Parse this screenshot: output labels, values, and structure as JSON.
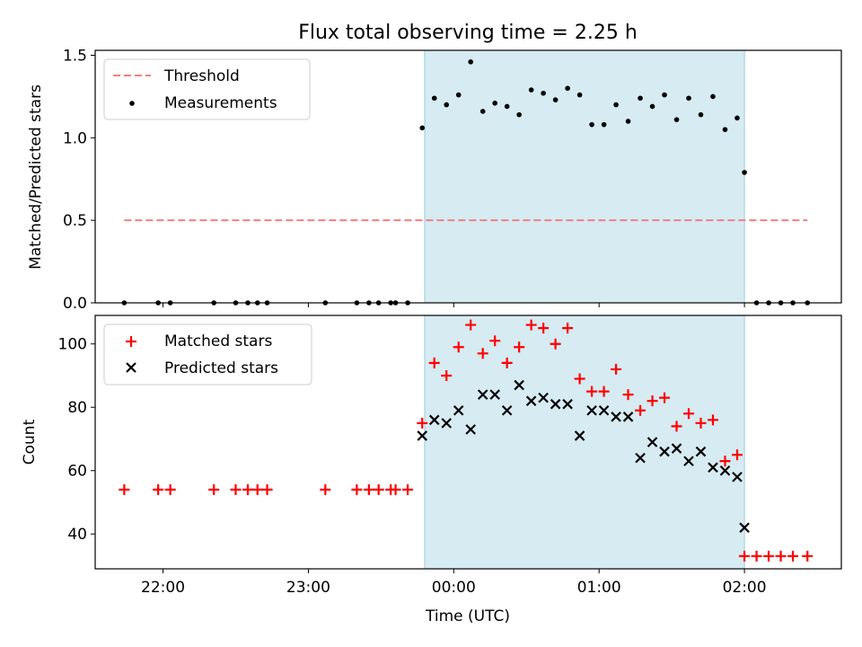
{
  "chart_data": {
    "title": "Flux total observing time = 2.25 h",
    "xlabel": "Time (UTC)",
    "x_ticks": [
      {
        "t": "22:00",
        "label": "22:00"
      },
      {
        "t": "23:00",
        "label": "23:00"
      },
      {
        "t": "00:00",
        "label": "00:00"
      },
      {
        "t": "01:00",
        "label": "01:00"
      },
      {
        "t": "02:00",
        "label": "02:00"
      }
    ],
    "xlim": [
      "21:32",
      "02:40"
    ],
    "shaded_interval": {
      "start": "23:48",
      "end": "02:00",
      "color": "#add8e6"
    },
    "panels": [
      {
        "type": "scatter",
        "ylabel": "Matched/Predicted stars",
        "ylim": [
          0,
          1.53
        ],
        "yticks": [
          0.0,
          0.5,
          1.0,
          1.5
        ],
        "ytick_labels": [
          "0.0",
          "0.5",
          "1.0",
          "1.5"
        ],
        "legend": {
          "location": "upper left",
          "entries": [
            "Threshold",
            "Measurements"
          ]
        },
        "threshold": {
          "name": "Threshold",
          "y": 0.5,
          "x_start": "21:44",
          "x_end": "02:26",
          "color": "#f08080",
          "style": "dashed"
        },
        "series": [
          {
            "name": "Measurements",
            "marker": "dot",
            "color": "#000000",
            "points": [
              [
                "21:44",
                0.0
              ],
              [
                "21:58",
                0.0
              ],
              [
                "22:03",
                0.0
              ],
              [
                "22:21",
                0.0
              ],
              [
                "22:30",
                0.0
              ],
              [
                "22:35",
                0.0
              ],
              [
                "22:39",
                0.0
              ],
              [
                "22:43",
                0.0
              ],
              [
                "23:07",
                0.0
              ],
              [
                "23:20",
                0.0
              ],
              [
                "23:25",
                0.0
              ],
              [
                "23:29",
                0.0
              ],
              [
                "23:34",
                0.0
              ],
              [
                "23:36",
                0.0
              ],
              [
                "23:41",
                0.0
              ],
              [
                "23:47",
                1.06
              ],
              [
                "23:52",
                1.24
              ],
              [
                "23:57",
                1.2
              ],
              [
                "00:02",
                1.26
              ],
              [
                "00:07",
                1.46
              ],
              [
                "00:12",
                1.16
              ],
              [
                "00:17",
                1.21
              ],
              [
                "00:22",
                1.19
              ],
              [
                "00:27",
                1.14
              ],
              [
                "00:32",
                1.29
              ],
              [
                "00:37",
                1.27
              ],
              [
                "00:42",
                1.23
              ],
              [
                "00:47",
                1.3
              ],
              [
                "00:52",
                1.26
              ],
              [
                "00:57",
                1.08
              ],
              [
                "01:02",
                1.08
              ],
              [
                "01:07",
                1.2
              ],
              [
                "01:12",
                1.1
              ],
              [
                "01:17",
                1.24
              ],
              [
                "01:22",
                1.19
              ],
              [
                "01:27",
                1.26
              ],
              [
                "01:32",
                1.11
              ],
              [
                "01:37",
                1.24
              ],
              [
                "01:42",
                1.14
              ],
              [
                "01:47",
                1.25
              ],
              [
                "01:52",
                1.05
              ],
              [
                "01:57",
                1.12
              ],
              [
                "02:00",
                0.79
              ],
              [
                "02:05",
                0.0
              ],
              [
                "02:10",
                0.0
              ],
              [
                "02:15",
                0.0
              ],
              [
                "02:20",
                0.0
              ],
              [
                "02:26",
                0.0
              ]
            ]
          }
        ]
      },
      {
        "type": "scatter",
        "ylabel": "Count",
        "ylim": [
          29,
          109
        ],
        "yticks": [
          40,
          60,
          80,
          100
        ],
        "ytick_labels": [
          "40",
          "60",
          "80",
          "100"
        ],
        "legend": {
          "location": "upper left",
          "entries": [
            "Matched stars",
            "Predicted stars"
          ]
        },
        "series": [
          {
            "name": "Matched stars",
            "marker": "plus",
            "color": "#ff0000",
            "points": [
              [
                "21:44",
                54
              ],
              [
                "21:58",
                54
              ],
              [
                "22:03",
                54
              ],
              [
                "22:21",
                54
              ],
              [
                "22:30",
                54
              ],
              [
                "22:35",
                54
              ],
              [
                "22:39",
                54
              ],
              [
                "22:43",
                54
              ],
              [
                "23:07",
                54
              ],
              [
                "23:20",
                54
              ],
              [
                "23:25",
                54
              ],
              [
                "23:29",
                54
              ],
              [
                "23:34",
                54
              ],
              [
                "23:36",
                54
              ],
              [
                "23:41",
                54
              ],
              [
                "23:47",
                75
              ],
              [
                "23:52",
                94
              ],
              [
                "23:57",
                90
              ],
              [
                "00:02",
                99
              ],
              [
                "00:07",
                106
              ],
              [
                "00:12",
                97
              ],
              [
                "00:17",
                101
              ],
              [
                "00:22",
                94
              ],
              [
                "00:27",
                99
              ],
              [
                "00:32",
                106
              ],
              [
                "00:37",
                105
              ],
              [
                "00:42",
                100
              ],
              [
                "00:47",
                105
              ],
              [
                "00:52",
                89
              ],
              [
                "00:57",
                85
              ],
              [
                "01:02",
                85
              ],
              [
                "01:07",
                92
              ],
              [
                "01:12",
                84
              ],
              [
                "01:17",
                79
              ],
              [
                "01:22",
                82
              ],
              [
                "01:27",
                83
              ],
              [
                "01:32",
                74
              ],
              [
                "01:37",
                78
              ],
              [
                "01:42",
                75
              ],
              [
                "01:47",
                76
              ],
              [
                "01:52",
                63
              ],
              [
                "01:57",
                65
              ],
              [
                "02:00",
                33
              ],
              [
                "02:05",
                33
              ],
              [
                "02:10",
                33
              ],
              [
                "02:15",
                33
              ],
              [
                "02:20",
                33
              ],
              [
                "02:26",
                33
              ]
            ]
          },
          {
            "name": "Predicted stars",
            "marker": "x",
            "color": "#000000",
            "points": [
              [
                "23:47",
                71
              ],
              [
                "23:52",
                76
              ],
              [
                "23:57",
                75
              ],
              [
                "00:02",
                79
              ],
              [
                "00:07",
                73
              ],
              [
                "00:12",
                84
              ],
              [
                "00:17",
                84
              ],
              [
                "00:22",
                79
              ],
              [
                "00:27",
                87
              ],
              [
                "00:32",
                82
              ],
              [
                "00:37",
                83
              ],
              [
                "00:42",
                81
              ],
              [
                "00:47",
                81
              ],
              [
                "00:52",
                71
              ],
              [
                "00:57",
                79
              ],
              [
                "01:02",
                79
              ],
              [
                "01:07",
                77
              ],
              [
                "01:12",
                77
              ],
              [
                "01:17",
                64
              ],
              [
                "01:22",
                69
              ],
              [
                "01:27",
                66
              ],
              [
                "01:32",
                67
              ],
              [
                "01:37",
                63
              ],
              [
                "01:42",
                66
              ],
              [
                "01:47",
                61
              ],
              [
                "01:52",
                60
              ],
              [
                "01:57",
                58
              ],
              [
                "02:00",
                42
              ]
            ]
          }
        ]
      }
    ]
  }
}
